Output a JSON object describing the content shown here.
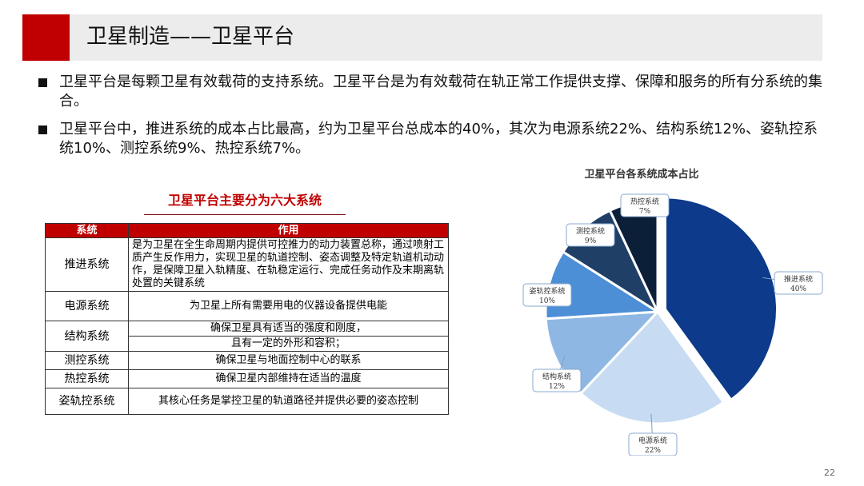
{
  "header": {
    "title": "卫星制造——卫星平台"
  },
  "bullets": [
    "卫星平台是每颗卫星有效载荷的支持系统。卫星平台是为有效载荷在轨正常工作提供支撑、保障和服务的所有分系统的集合。",
    "卫星平台中，推进系统的成本占比最高，约为卫星平台总成本的40%，其次为电源系统22%、结构系统12%、姿轨控系统10%、测控系统9%、热控系统7%。"
  ],
  "table": {
    "title": "卫星平台主要分为六大系统",
    "headers": [
      "系统",
      "作用"
    ],
    "rows": [
      {
        "name": "推进系统",
        "desc": [
          "是为卫星在全生命周期内提供可控推力的动力装置总称，通过喷射工质产生反作用力，实现卫星的轨道控制、姿态调整及特定轨道机动动作，是保障卫星入轨精度、在轨稳定运行、完成任务动作及末期离轨处置的关键系统"
        ]
      },
      {
        "name": "电源系统",
        "desc": [
          "为卫星上所有需要用电的仪器设备提供电能"
        ]
      },
      {
        "name": "结构系统",
        "desc": [
          "确保卫星具有适当的强度和刚度，",
          "且有一定的外形和容积；"
        ]
      },
      {
        "name": "测控系统",
        "desc": [
          "确保卫星与地面控制中心的联系"
        ]
      },
      {
        "name": "热控系统",
        "desc": [
          "确保卫星内部维持在适当的温度"
        ]
      },
      {
        "name": "姿轨控系统",
        "desc": [
          "其核心任务是掌控卫星的轨道路径并提供必要的姿态控制"
        ]
      }
    ]
  },
  "chart_data": {
    "type": "pie",
    "title": "卫星平台各系统成本占比",
    "slices": [
      {
        "label": "推进系统",
        "value": 40,
        "display": "40%",
        "color": "#0d3a8a"
      },
      {
        "label": "电源系统",
        "value": 22,
        "display": "22%",
        "color": "#c7dcf2"
      },
      {
        "label": "结构系统",
        "value": 12,
        "display": "12%",
        "color": "#8fb7e3"
      },
      {
        "label": "姿轨控系统",
        "value": 10,
        "display": "10%",
        "color": "#4d8fd6"
      },
      {
        "label": "测控系统",
        "value": 9,
        "display": "9%",
        "color": "#1f3f66"
      },
      {
        "label": "热控系统",
        "value": 7,
        "display": "7%",
        "color": "#0b1f38"
      }
    ],
    "legend": "none",
    "exploded": [
      "推进系统"
    ]
  },
  "page_number": "22"
}
